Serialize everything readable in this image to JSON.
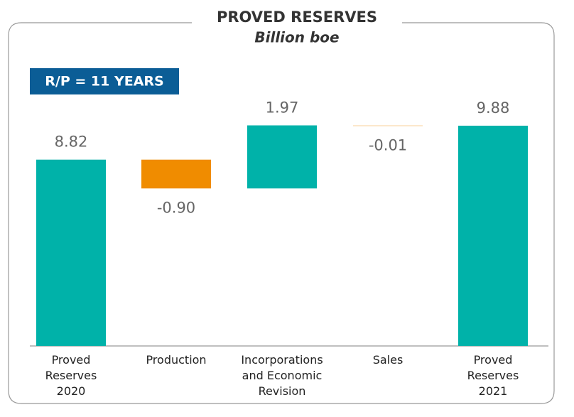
{
  "chart_data": {
    "type": "waterfall",
    "title": "PROVED RESERVES",
    "subtitle": "Billion boe",
    "annotation": "R/P = 11 YEARS",
    "categories": [
      "Proved Reserves 2020",
      "Production",
      "Incorporations and Economic Revision",
      "Sales",
      "Proved Reserves 2021"
    ],
    "values": [
      8.82,
      -0.9,
      1.97,
      -0.01,
      9.88
    ],
    "value_labels": [
      "8.82",
      "-0.90",
      "1.97",
      "-0.01",
      "9.88"
    ],
    "totals": [
      true,
      false,
      false,
      false,
      true
    ],
    "colors": {
      "total": "#00b2a9",
      "increase": "#00b2a9",
      "decrease": "#f08c00"
    },
    "ylim": [
      3,
      10.5
    ]
  }
}
